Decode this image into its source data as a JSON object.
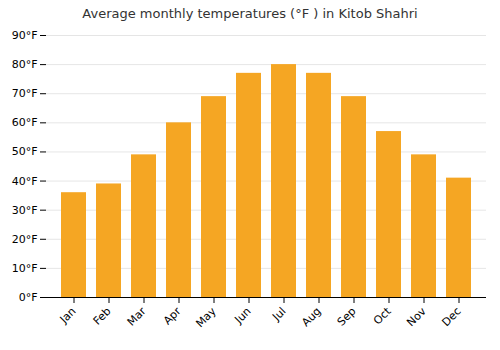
{
  "chart_data": {
    "type": "bar",
    "title": "Average monthly temperatures (°F ) in Kitob Shahri",
    "categories": [
      "Jan",
      "Feb",
      "Mar",
      "Apr",
      "May",
      "Jun",
      "Jul",
      "Aug",
      "Sep",
      "Oct",
      "Nov",
      "Dec"
    ],
    "values": [
      36,
      39,
      49,
      60,
      69,
      77,
      80,
      77,
      69,
      57,
      49,
      41
    ],
    "color": "#F5A623",
    "ylim": [
      0,
      90
    ],
    "yticks": [
      {
        "value": 0,
        "label": "0°F"
      },
      {
        "value": 10,
        "label": "10°F"
      },
      {
        "value": 20,
        "label": "20°F"
      },
      {
        "value": 30,
        "label": "30°F"
      },
      {
        "value": 40,
        "label": "40°F"
      },
      {
        "value": 50,
        "label": "50°F"
      },
      {
        "value": 60,
        "label": "60°F"
      },
      {
        "value": 70,
        "label": "70°F"
      },
      {
        "value": 80,
        "label": "80°F"
      },
      {
        "value": 90,
        "label": "90°F"
      }
    ],
    "grid": true
  }
}
